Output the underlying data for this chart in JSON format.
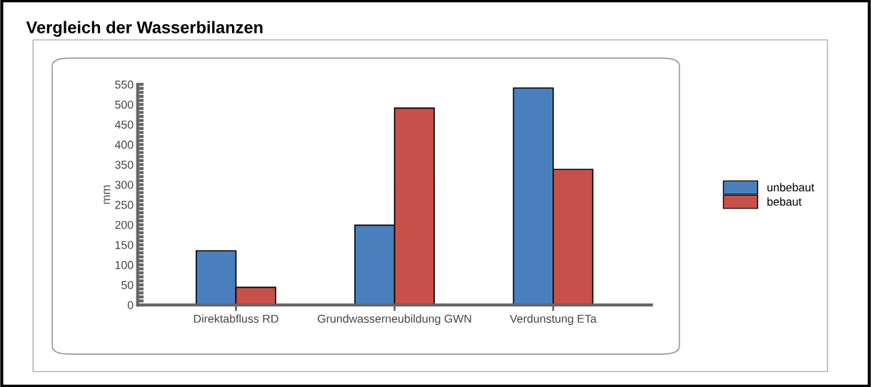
{
  "chart_data": {
    "type": "bar",
    "title": "Vergleich der Wasserbilanzen",
    "ylabel": "mm",
    "categories": [
      "Direktabfluss RD",
      "Grundwasserneubildung GWN",
      "Verdunstung ETa"
    ],
    "series": [
      {
        "name": "unbebaut",
        "color": "#4a7fbe",
        "values": [
          135,
          199,
          541
        ]
      },
      {
        "name": "bebaut",
        "color": "#c7504b",
        "values": [
          44,
          491,
          338
        ]
      }
    ],
    "ylim": [
      0,
      550
    ],
    "yticks": [
      0,
      50,
      100,
      150,
      200,
      250,
      300,
      350,
      400,
      450,
      500,
      550
    ],
    "grid": false,
    "legend": "right"
  }
}
